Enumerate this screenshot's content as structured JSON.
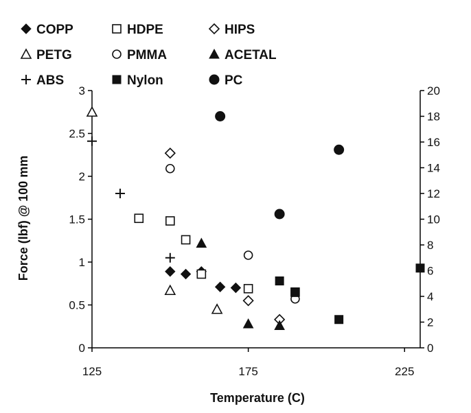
{
  "chart_data": {
    "type": "scatter",
    "title": "",
    "xlabel": "Temperature (C)",
    "ylabel": "Force (lbf) @ 100 mm",
    "y2label": "",
    "xlim": [
      125,
      230
    ],
    "ylim": [
      0,
      3
    ],
    "y2lim": [
      0,
      20
    ],
    "x_ticks": [
      "125",
      "175",
      "225"
    ],
    "y_ticks": [
      "0",
      "0.5",
      "1",
      "1.5",
      "2",
      "2.5",
      "3"
    ],
    "y2_ticks": [
      "0",
      "2",
      "4",
      "6",
      "8",
      "10",
      "12",
      "14",
      "16",
      "18",
      "20"
    ],
    "grid": false,
    "legend_position": "top",
    "colors": {
      "marker": "#111111",
      "axis": "#000000"
    },
    "series": [
      {
        "name": "COPP",
        "marker": "diamond-filled",
        "axis": "left",
        "points": [
          [
            150,
            0.89
          ],
          [
            155,
            0.86
          ],
          [
            160,
            0.89
          ],
          [
            166,
            0.71
          ],
          [
            171,
            0.7
          ]
        ]
      },
      {
        "name": "HDPE",
        "marker": "square-open",
        "axis": "left",
        "points": [
          [
            140,
            1.51
          ],
          [
            150,
            1.48
          ],
          [
            155,
            1.26
          ],
          [
            160,
            0.86
          ],
          [
            175,
            0.69
          ],
          [
            190,
            0.65
          ]
        ]
      },
      {
        "name": "HIPS",
        "marker": "diamond-open",
        "axis": "left",
        "points": [
          [
            150,
            2.27
          ],
          [
            175,
            0.55
          ],
          [
            185,
            0.33
          ]
        ]
      },
      {
        "name": "PETG",
        "marker": "triangle-open",
        "axis": "left",
        "points": [
          [
            125,
            2.75
          ],
          [
            150,
            0.67
          ],
          [
            165,
            0.45
          ]
        ]
      },
      {
        "name": "PMMA",
        "marker": "circle-open",
        "axis": "left",
        "points": [
          [
            150,
            2.09
          ],
          [
            175,
            1.08
          ],
          [
            190,
            0.57
          ]
        ]
      },
      {
        "name": "ACETAL",
        "marker": "triangle-filled",
        "axis": "left",
        "points": [
          [
            160,
            1.22
          ],
          [
            175,
            0.28
          ],
          [
            185,
            0.26
          ]
        ]
      },
      {
        "name": "ABS",
        "marker": "plus",
        "axis": "left",
        "points": [
          [
            125,
            2.41
          ],
          [
            134,
            1.8
          ],
          [
            150,
            1.05
          ]
        ]
      },
      {
        "name": "Nylon",
        "marker": "square-filled",
        "axis": "right",
        "points": [
          [
            185,
            5.2
          ],
          [
            190,
            4.3
          ],
          [
            204,
            2.2
          ],
          [
            230,
            6.2
          ]
        ]
      },
      {
        "name": "PC",
        "marker": "circle-filled",
        "axis": "right",
        "points": [
          [
            166,
            18.0
          ],
          [
            185,
            10.4
          ],
          [
            204,
            15.4
          ]
        ]
      }
    ]
  }
}
